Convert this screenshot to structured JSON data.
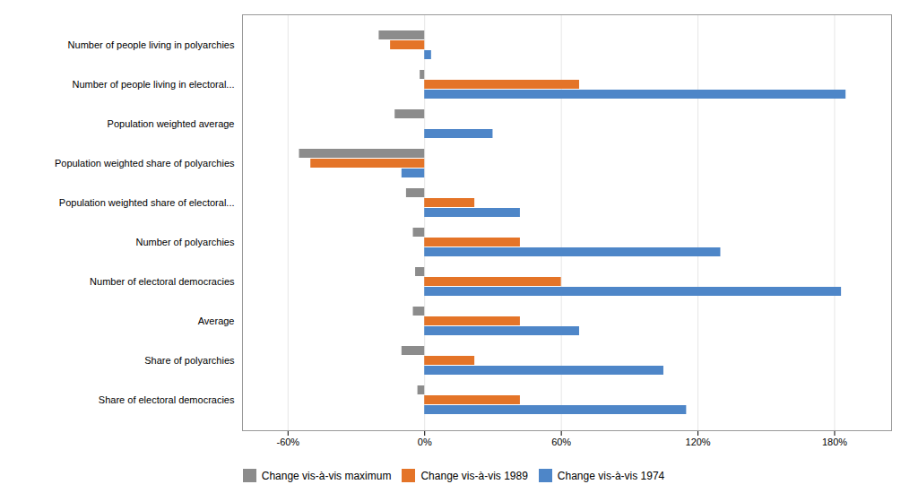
{
  "chart_data": {
    "type": "bar",
    "orientation": "horizontal",
    "categories": [
      "Number of people living in polyarchies",
      "Number of people living in electoral...",
      "Population weighted average",
      "Population weighted share of polyarchies",
      "Population weighted share of electoral...",
      "Number of polyarchies",
      "Number of electoral democracies",
      "Average",
      "Share of polyarchies",
      "Share of electoral democracies"
    ],
    "series": [
      {
        "name": "Change vis-à-vis maximum",
        "color": "#8c8c8c",
        "values": [
          -20,
          -2,
          -13,
          -55,
          -8,
          -5,
          -4,
          -5,
          -10,
          -3
        ]
      },
      {
        "name": "Change vis-à-vis 1989",
        "color": "#e47428",
        "values": [
          -15,
          68,
          0,
          -50,
          22,
          42,
          60,
          42,
          22,
          42
        ]
      },
      {
        "name": "Change vis-à-vis 1974",
        "color": "#4e86c8",
        "values": [
          3,
          185,
          30,
          -10,
          42,
          130,
          183,
          68,
          105,
          115
        ]
      }
    ],
    "xlim": [
      -80,
      205
    ],
    "xticks": [
      {
        "value": -60,
        "label": "-60%"
      },
      {
        "value": 0,
        "label": "0%"
      },
      {
        "value": 60,
        "label": "60%"
      },
      {
        "value": 120,
        "label": "120%"
      },
      {
        "value": 180,
        "label": "180%"
      }
    ],
    "grid": true,
    "legend": "bottom"
  }
}
